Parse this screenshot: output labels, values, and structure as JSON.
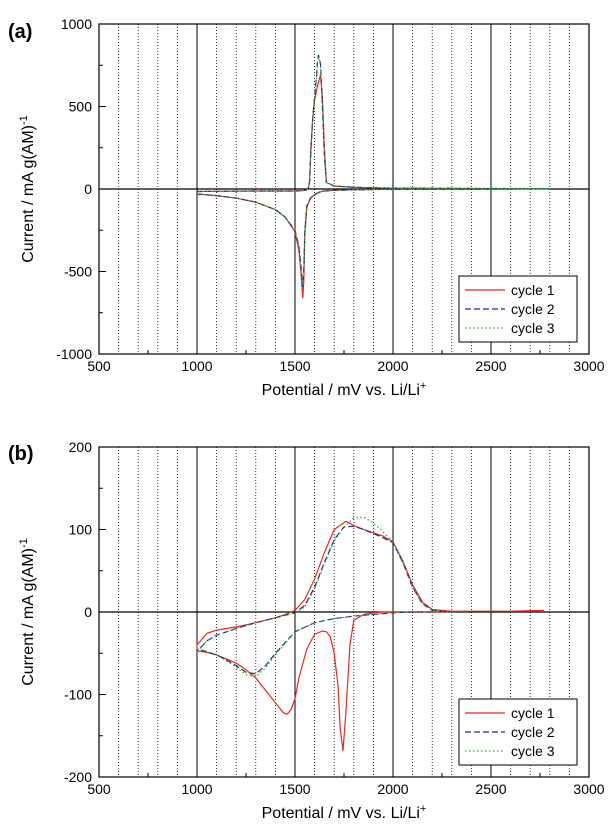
{
  "chart_data": [
    {
      "type": "line",
      "panel_label": "(a)",
      "xlabel": "Potential / mV vs. Li/Li",
      "xlabel_sup": "+",
      "ylabel": "Current / mA g(AM)",
      "ylabel_sup": "-1",
      "xlim": [
        500,
        3000
      ],
      "ylim": [
        -1000,
        1000
      ],
      "xticks": [
        500,
        1000,
        1500,
        2000,
        2500,
        3000
      ],
      "yticks": [
        -1000,
        -500,
        0,
        500,
        1000
      ],
      "grid": "vertical dotted every 100 mV",
      "legend_position": "bottom-right",
      "series": [
        {
          "name": "cycle 1",
          "color": "#e8281e",
          "dash": "solid",
          "x": [
            1000,
            1100,
            1200,
            1300,
            1400,
            1450,
            1500,
            1520,
            1530,
            1535,
            1540,
            1545,
            1550,
            1560,
            1580,
            1600,
            1620,
            1640,
            1700,
            1800,
            1900,
            2000,
            2200,
            2400,
            2600,
            2800,
            2600,
            2400,
            2200,
            2000,
            1900,
            1800,
            1700,
            1660,
            1650,
            1640,
            1630,
            1620,
            1610,
            1600,
            1590,
            1580,
            1575,
            1570,
            1560,
            1540,
            1500,
            1400,
            1300,
            1200,
            1100,
            1000
          ],
          "y": [
            -30,
            -40,
            -55,
            -80,
            -125,
            -170,
            -260,
            -370,
            -500,
            -590,
            -660,
            -560,
            -280,
            -110,
            -55,
            -35,
            -22,
            -14,
            -8,
            -5,
            -3,
            -2,
            -1,
            -1,
            0,
            1,
            2,
            3,
            4,
            5,
            7,
            10,
            18,
            40,
            250,
            560,
            690,
            650,
            600,
            540,
            420,
            230,
            60,
            10,
            -5,
            -10,
            -12,
            -12,
            -12,
            -13,
            -14,
            -15
          ]
        },
        {
          "name": "cycle 2",
          "color": "#1e2a8c",
          "dash": "dashed",
          "x": [
            1000,
            1100,
            1200,
            1300,
            1400,
            1450,
            1500,
            1520,
            1530,
            1535,
            1540,
            1545,
            1550,
            1560,
            1580,
            1600,
            1620,
            1640,
            1700,
            1800,
            1900,
            2000,
            2200,
            2400,
            2600,
            2800,
            2600,
            2400,
            2200,
            2000,
            1900,
            1800,
            1700,
            1660,
            1650,
            1640,
            1630,
            1620,
            1615,
            1610,
            1600,
            1590,
            1580,
            1575,
            1570,
            1560,
            1540,
            1500,
            1400,
            1300,
            1200,
            1100,
            1000
          ],
          "y": [
            -30,
            -40,
            -55,
            -80,
            -125,
            -170,
            -250,
            -350,
            -460,
            -540,
            -590,
            -490,
            -260,
            -100,
            -52,
            -33,
            -21,
            -13,
            -8,
            -5,
            -3,
            -2,
            -1,
            -1,
            0,
            1,
            2,
            3,
            4,
            5,
            7,
            10,
            18,
            40,
            200,
            500,
            760,
            810,
            780,
            690,
            560,
            420,
            200,
            50,
            10,
            -5,
            -10,
            -12,
            -12,
            -12,
            -13,
            -14,
            -15
          ]
        },
        {
          "name": "cycle 3",
          "color": "#26b026",
          "dash": "dotted",
          "x": [
            1000,
            1100,
            1200,
            1300,
            1400,
            1450,
            1500,
            1520,
            1530,
            1535,
            1540,
            1545,
            1550,
            1560,
            1580,
            1600,
            1620,
            1640,
            1700,
            1800,
            1900,
            2000,
            2200,
            2400,
            2600,
            2800,
            2600,
            2400,
            2200,
            2000,
            1900,
            1800,
            1700,
            1660,
            1650,
            1640,
            1630,
            1620,
            1615,
            1610,
            1600,
            1590,
            1580,
            1575,
            1570,
            1560,
            1540,
            1500,
            1400,
            1300,
            1200,
            1100,
            1000
          ],
          "y": [
            -30,
            -40,
            -55,
            -80,
            -125,
            -170,
            -250,
            -345,
            -455,
            -530,
            -580,
            -480,
            -255,
            -100,
            -52,
            -33,
            -21,
            -13,
            -8,
            -5,
            -3,
            -2,
            -1,
            -1,
            0,
            1,
            2,
            3,
            4,
            5,
            7,
            10,
            18,
            40,
            200,
            500,
            750,
            800,
            770,
            680,
            550,
            410,
            200,
            50,
            10,
            -5,
            -10,
            -12,
            -12,
            -12,
            -13,
            -14,
            -15
          ]
        }
      ]
    },
    {
      "type": "line",
      "panel_label": "(b)",
      "xlabel": "Potential / mV vs. Li/Li",
      "xlabel_sup": "+",
      "ylabel": "Current / mA g(AM)",
      "ylabel_sup": "-1",
      "xlim": [
        500,
        3000
      ],
      "ylim": [
        -200,
        200
      ],
      "xticks": [
        500,
        1000,
        1500,
        2000,
        2500,
        3000
      ],
      "yticks": [
        -200,
        -100,
        0,
        100,
        200
      ],
      "grid": "vertical dotted every 100 mV",
      "legend_position": "bottom-right",
      "series": [
        {
          "name": "cycle 1",
          "color": "#e8281e",
          "dash": "solid",
          "x": [
            2770,
            2600,
            2400,
            2200,
            2150,
            2100,
            2050,
            2000,
            1950,
            1900,
            1850,
            1800,
            1780,
            1760,
            1745,
            1730,
            1720,
            1700,
            1680,
            1660,
            1640,
            1600,
            1560,
            1520,
            1500,
            1480,
            1460,
            1440,
            1400,
            1350,
            1300,
            1250,
            1200,
            1100,
            1050,
            1000,
            1000,
            1050,
            1100,
            1200,
            1300,
            1400,
            1450,
            1500,
            1550,
            1600,
            1650,
            1700,
            1760,
            1800,
            1850,
            1900,
            1950,
            2000,
            2050,
            2100,
            2150,
            2200,
            2300,
            2400,
            2600,
            2760
          ],
          "y": [
            2,
            1,
            1,
            0,
            0,
            0,
            0,
            0,
            0,
            -1,
            -3,
            -10,
            -40,
            -120,
            -168,
            -140,
            -90,
            -50,
            -30,
            -24,
            -23,
            -27,
            -45,
            -80,
            -105,
            -118,
            -124,
            -122,
            -110,
            -95,
            -80,
            -70,
            -62,
            -52,
            -49,
            -47,
            -40,
            -26,
            -22,
            -18,
            -13,
            -7,
            -3,
            2,
            15,
            40,
            72,
            100,
            110,
            105,
            100,
            96,
            92,
            85,
            62,
            33,
            12,
            3,
            1,
            1,
            1,
            1
          ]
        },
        {
          "name": "cycle 2",
          "color": "#1e2a8c",
          "dash": "dashed",
          "x": [
            2200,
            2100,
            2000,
            1900,
            1800,
            1700,
            1600,
            1500,
            1400,
            1350,
            1300,
            1250,
            1200,
            1150,
            1100,
            1050,
            1000,
            1000,
            1050,
            1100,
            1200,
            1300,
            1400,
            1450,
            1500,
            1550,
            1600,
            1650,
            1700,
            1750,
            1800,
            1850,
            1900,
            1950,
            2000,
            2050,
            2100,
            2150,
            2200,
            2300
          ],
          "y": [
            0,
            0,
            -1,
            -3,
            -5,
            -8,
            -13,
            -24,
            -50,
            -65,
            -75,
            -73,
            -65,
            -58,
            -52,
            -48,
            -45,
            -48,
            -35,
            -28,
            -20,
            -13,
            -7,
            -4,
            -1,
            8,
            30,
            60,
            88,
            103,
            104,
            100,
            95,
            90,
            84,
            60,
            30,
            10,
            2,
            0
          ]
        },
        {
          "name": "cycle 3",
          "color": "#26b026",
          "dash": "dotted",
          "x": [
            2200,
            2100,
            2000,
            1900,
            1800,
            1700,
            1600,
            1500,
            1400,
            1350,
            1300,
            1250,
            1200,
            1150,
            1100,
            1050,
            1000,
            1000,
            1050,
            1100,
            1200,
            1300,
            1400,
            1450,
            1500,
            1550,
            1600,
            1650,
            1700,
            1750,
            1800,
            1850,
            1900,
            1950,
            2000,
            2050,
            2100,
            2150,
            2200,
            2300
          ],
          "y": [
            0,
            0,
            -1,
            -3,
            -5,
            -8,
            -13,
            -24,
            -52,
            -68,
            -78,
            -76,
            -67,
            -59,
            -52,
            -48,
            -45,
            -48,
            -35,
            -28,
            -20,
            -13,
            -7,
            -4,
            -1,
            6,
            28,
            58,
            86,
            103,
            114,
            115,
            108,
            97,
            85,
            60,
            30,
            10,
            2,
            0
          ]
        }
      ]
    }
  ]
}
